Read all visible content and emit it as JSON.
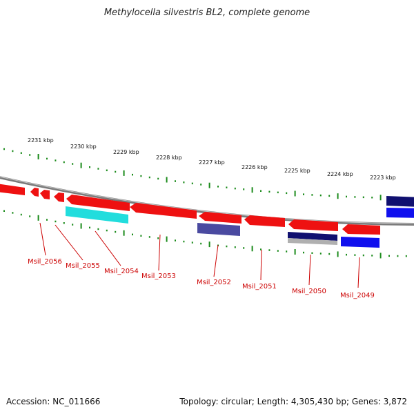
{
  "title": "Methylocella silvestris BL2, complete genome",
  "footer": {
    "accession": "Accession: NC_011666",
    "summary": "Topology: circular; Length: 4,305,430 bp; Genes: 3,872"
  },
  "scale_ticks_kbp": [
    2231,
    2230,
    2229,
    2228,
    2227,
    2226,
    2225,
    2224,
    2223
  ],
  "scale_labels": [
    "2231 kbp",
    "2230 kbp",
    "2229 kbp",
    "2228 kbp",
    "2227 kbp",
    "2226 kbp",
    "2225 kbp",
    "2224 kbp",
    "2223 kbp"
  ],
  "genes": [
    "Msil_2056",
    "Msil_2055",
    "Msil_2054",
    "Msil_2053",
    "Msil_2052",
    "Msil_2051",
    "Msil_2050",
    "Msil_2049"
  ],
  "colors": {
    "gene_forward": "#ee1111",
    "gene_shadow": "#f08080",
    "tick_green": "#1a8a1a",
    "backbone": "#888888",
    "track_cyan": "#22dddd",
    "track_slate": "#4a4aa0",
    "track_navy": "#101070",
    "track_blue": "#1010ee",
    "label_red": "#cc0000"
  }
}
